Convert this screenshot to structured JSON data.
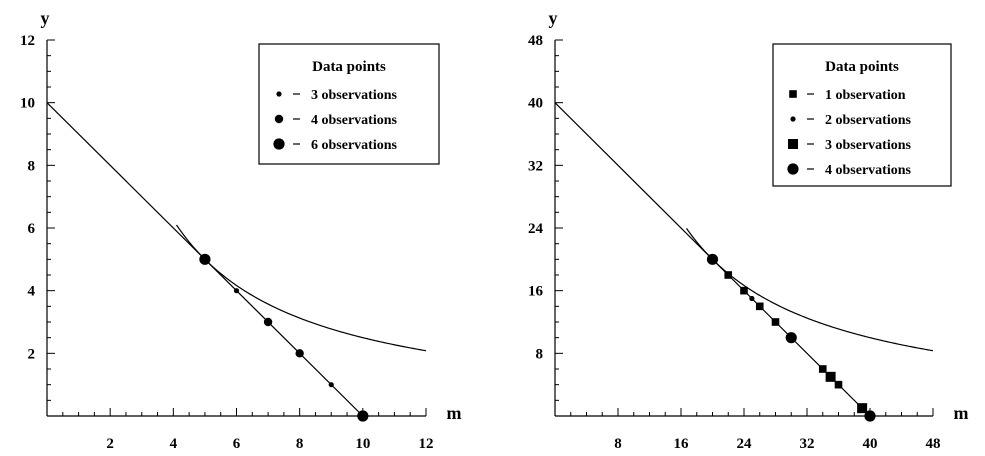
{
  "chart_data": [
    {
      "type": "scatter",
      "xlabel": "m",
      "ylabel": "y",
      "xlim": [
        0,
        12
      ],
      "ylim": [
        0,
        12
      ],
      "x_ticks": [
        2,
        4,
        6,
        8,
        10,
        12
      ],
      "y_ticks": [
        2,
        4,
        6,
        8,
        10,
        12
      ],
      "x_ticklabels": [
        "2",
        "4",
        "6",
        "8",
        "10",
        "12"
      ],
      "y_ticklabels": [
        "2",
        "4",
        "6",
        "8",
        "10",
        "12"
      ],
      "minor_step": 0.5,
      "line": {
        "x": [
          0,
          10
        ],
        "y": [
          10,
          0
        ]
      },
      "curve": {
        "k": 25,
        "x_from": 4.1,
        "x_to": 12
      },
      "legend": {
        "title": "Data  points",
        "position": "top-right",
        "entries": [
          {
            "label": "3 observations",
            "marker": "circle-small"
          },
          {
            "label": "4 observations",
            "marker": "circle-medium"
          },
          {
            "label": "6 observations",
            "marker": "circle-large"
          }
        ]
      },
      "points": [
        {
          "x": 5,
          "y": 5,
          "marker": "circle-large"
        },
        {
          "x": 6,
          "y": 4,
          "marker": "circle-small"
        },
        {
          "x": 7,
          "y": 3,
          "marker": "circle-medium"
        },
        {
          "x": 8,
          "y": 2,
          "marker": "circle-medium"
        },
        {
          "x": 9,
          "y": 1,
          "marker": "circle-small"
        },
        {
          "x": 10,
          "y": 0,
          "marker": "circle-large"
        }
      ]
    },
    {
      "type": "scatter",
      "xlabel": "m",
      "ylabel": "y",
      "xlim": [
        0,
        48
      ],
      "ylim": [
        0,
        48
      ],
      "x_ticks": [
        8,
        16,
        24,
        32,
        40,
        48
      ],
      "y_ticks": [
        8,
        16,
        24,
        32,
        40,
        48
      ],
      "x_ticklabels": [
        "8",
        "16",
        "24",
        "32",
        "40",
        "48"
      ],
      "y_ticklabels": [
        "8",
        "16",
        "24",
        "32",
        "40",
        "48"
      ],
      "minor_step": 2,
      "line": {
        "x": [
          0,
          40
        ],
        "y": [
          40,
          0
        ]
      },
      "curve": {
        "k": 400,
        "x_from": 16.7,
        "x_to": 48
      },
      "legend": {
        "title": "Data  points",
        "position": "top-right",
        "entries": [
          {
            "label": "1 observation",
            "marker": "square-small"
          },
          {
            "label": "2 observations",
            "marker": "circle-small"
          },
          {
            "label": "3 observations",
            "marker": "square-large"
          },
          {
            "label": "4 observations",
            "marker": "circle-large"
          }
        ]
      },
      "points": [
        {
          "x": 20,
          "y": 20,
          "marker": "circle-large"
        },
        {
          "x": 22,
          "y": 18,
          "marker": "square-small"
        },
        {
          "x": 24,
          "y": 16,
          "marker": "square-small"
        },
        {
          "x": 25,
          "y": 15,
          "marker": "circle-small"
        },
        {
          "x": 26,
          "y": 14,
          "marker": "square-small"
        },
        {
          "x": 28,
          "y": 12,
          "marker": "square-small"
        },
        {
          "x": 30,
          "y": 10,
          "marker": "circle-large"
        },
        {
          "x": 34,
          "y": 6,
          "marker": "square-small"
        },
        {
          "x": 35,
          "y": 5,
          "marker": "square-large"
        },
        {
          "x": 36,
          "y": 4,
          "marker": "square-small"
        },
        {
          "x": 39,
          "y": 1,
          "marker": "square-large"
        },
        {
          "x": 40,
          "y": 0,
          "marker": "circle-large"
        }
      ]
    }
  ]
}
